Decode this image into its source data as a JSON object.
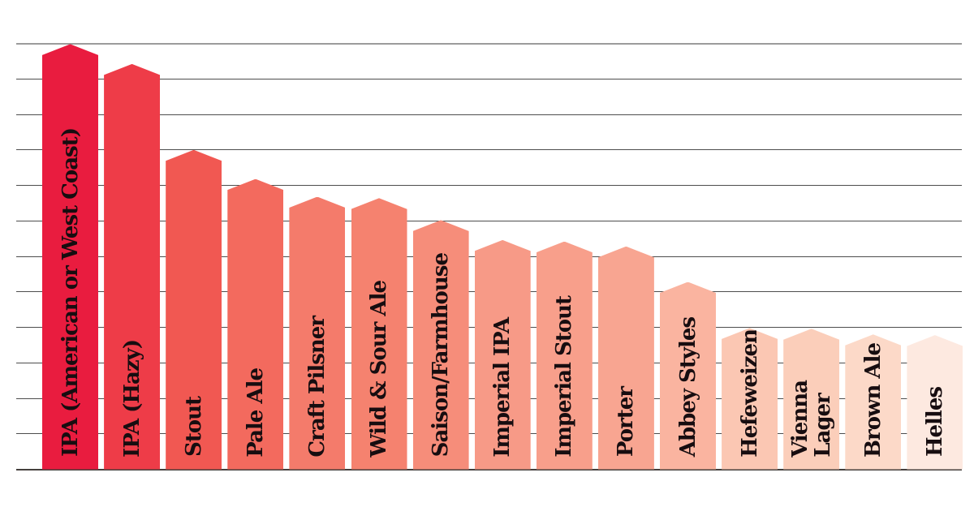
{
  "page": {
    "background_color": "#ffffff",
    "label_text_color": "#170d10",
    "gridline_color": "#4d4d4d",
    "top_gridline_color": "#9b9b9b",
    "baseline_color": "#45403d"
  },
  "chart_data": {
    "type": "bar",
    "title": "",
    "xlabel": "",
    "ylabel": "",
    "legend_position": "none",
    "grid": true,
    "gridline_count": 13,
    "values_estimated_from_gridlines": true,
    "axis_tick_labels_visible": false,
    "ylim": [
      0,
      60
    ],
    "gridline_step_estimate": 5,
    "bar_shape": "pointed-top (pencil/arrow shaped bars)",
    "categories": [
      "IPA (American or West Coast)",
      "IPA (Hazy)",
      "Stout",
      "Pale Ale",
      "Craft Pilsner",
      "Wild & Sour Ale",
      "Saison/Farmhouse",
      "Imperial IPA",
      "Imperial Stout",
      "Porter",
      "Abbey Styles",
      "Hefeweizen",
      "Vienna\nLager",
      "Brown Ale",
      "Helles"
    ],
    "values": [
      59.9,
      57.1,
      45.0,
      40.9,
      38.4,
      38.2,
      35.1,
      32.3,
      32.1,
      31.4,
      26.4,
      19.9,
      19.8,
      19.0,
      18.9
    ],
    "colors": [
      "#e91c3f",
      "#ee3c48",
      "#f15852",
      "#f36a5e",
      "#f47b6b",
      "#f5826f",
      "#f68d7a",
      "#f79a87",
      "#f89f8b",
      "#f8a591",
      "#fab4a0",
      "#fbc7b3",
      "#fbceba",
      "#fcd9c8",
      "#fde9e0"
    ]
  }
}
